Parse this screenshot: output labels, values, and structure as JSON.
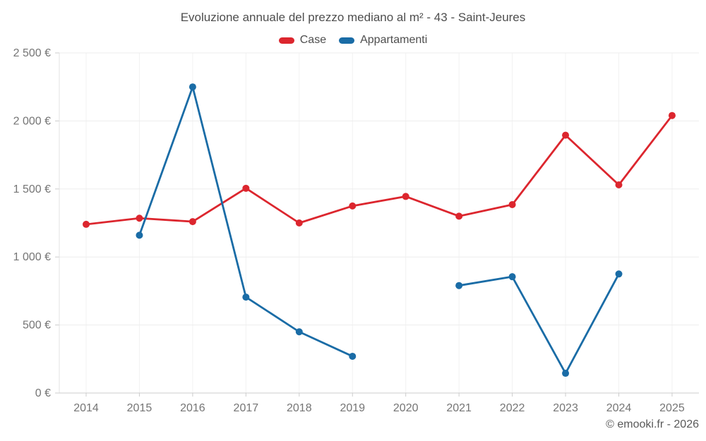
{
  "title": "Evoluzione annuale del prezzo mediano al m² - 43 - Saint-Jeures",
  "footer": "© emooki.fr - 2026",
  "legend": [
    {
      "label": "Case",
      "color": "#dc262e"
    },
    {
      "label": "Appartamenti",
      "color": "#1a6ca6"
    }
  ],
  "chart_data": {
    "type": "line",
    "title": "Evoluzione annuale del prezzo mediano al m² - 43 - Saint-Jeures",
    "xlabel": "",
    "ylabel": "",
    "categories": [
      "2014",
      "2015",
      "2016",
      "2017",
      "2018",
      "2019",
      "2020",
      "2021",
      "2022",
      "2023",
      "2024",
      "2025"
    ],
    "series": [
      {
        "name": "Case",
        "color": "#dc262e",
        "values": [
          1240,
          1285,
          1260,
          1505,
          1250,
          1375,
          1445,
          1300,
          1385,
          1895,
          1530,
          2040
        ]
      },
      {
        "name": "Appartamenti",
        "color": "#1a6ca6",
        "values": [
          null,
          1160,
          2250,
          705,
          450,
          270,
          null,
          790,
          855,
          145,
          875,
          null
        ]
      }
    ],
    "ylim": [
      0,
      2500
    ],
    "yticks": [
      {
        "value": 0,
        "label": "0 €"
      },
      {
        "value": 500,
        "label": "500 €"
      },
      {
        "value": 1000,
        "label": "1 000 €"
      },
      {
        "value": 1500,
        "label": "1 500 €"
      },
      {
        "value": 2000,
        "label": "2 000 €"
      },
      {
        "value": 2500,
        "label": "2 500 €"
      }
    ],
    "grid": true,
    "legend_position": "top",
    "currency": "EUR"
  }
}
